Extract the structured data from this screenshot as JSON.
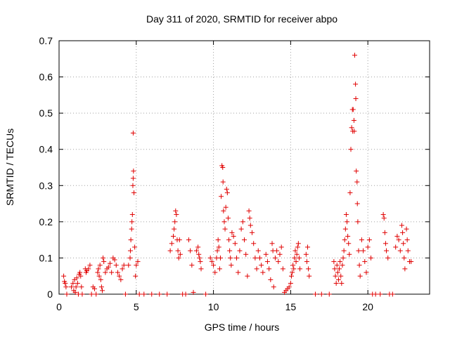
{
  "chart_data": {
    "type": "scatter",
    "title": "Day 311 of 2020, SRMTID for receiver abpo",
    "xlabel": "GPS time / hours",
    "ylabel": "SRMTID / TECUs",
    "xlim": [
      0,
      24
    ],
    "ylim": [
      0,
      0.7
    ],
    "x_ticks": [
      0,
      5,
      10,
      15,
      20
    ],
    "y_ticks": [
      0,
      0.1,
      0.2,
      0.3,
      0.4,
      0.5,
      0.6,
      0.7
    ],
    "x_tick_labels": [
      "0",
      "5",
      "10",
      "15",
      "20"
    ],
    "y_tick_labels": [
      "0",
      "0.1",
      "0.2",
      "0.3",
      "0.4",
      "0.5",
      "0.6",
      "0.7"
    ],
    "grid": true,
    "marker": "+",
    "color": "#e00000",
    "series": [
      {
        "name": "abpo",
        "points": [
          [
            0.3,
            0.05
          ],
          [
            0.35,
            0.035
          ],
          [
            0.4,
            0.03
          ],
          [
            0.45,
            0.02
          ],
          [
            0.5,
            0.0
          ],
          [
            0.8,
            0.02
          ],
          [
            0.9,
            0.03
          ],
          [
            0.95,
            0.01
          ],
          [
            1.0,
            0.04
          ],
          [
            1.05,
            0.005
          ],
          [
            1.1,
            0.02
          ],
          [
            1.15,
            0.045
          ],
          [
            1.2,
            0.03
          ],
          [
            1.25,
            0.0
          ],
          [
            1.3,
            0.055
          ],
          [
            1.35,
            0.06
          ],
          [
            1.4,
            0.05
          ],
          [
            1.45,
            0.02
          ],
          [
            1.5,
            0.0
          ],
          [
            1.7,
            0.07
          ],
          [
            1.75,
            0.06
          ],
          [
            1.8,
            0.065
          ],
          [
            1.9,
            0.07
          ],
          [
            2.0,
            0.08
          ],
          [
            2.1,
            0.0
          ],
          [
            2.2,
            0.02
          ],
          [
            2.3,
            0.015
          ],
          [
            2.4,
            0.0
          ],
          [
            2.5,
            0.06
          ],
          [
            2.55,
            0.07
          ],
          [
            2.6,
            0.05
          ],
          [
            2.65,
            0.08
          ],
          [
            2.7,
            0.04
          ],
          [
            2.75,
            0.02
          ],
          [
            2.8,
            0.01
          ],
          [
            2.85,
            0.1
          ],
          [
            2.9,
            0.09
          ],
          [
            3.0,
            0.06
          ],
          [
            3.1,
            0.07
          ],
          [
            3.2,
            0.075
          ],
          [
            3.3,
            0.085
          ],
          [
            3.4,
            0.06
          ],
          [
            3.5,
            0.1
          ],
          [
            3.6,
            0.095
          ],
          [
            3.7,
            0.08
          ],
          [
            3.8,
            0.06
          ],
          [
            3.9,
            0.05
          ],
          [
            4.0,
            0.04
          ],
          [
            4.1,
            0.07
          ],
          [
            4.2,
            0.08
          ],
          [
            4.3,
            0.0
          ],
          [
            4.5,
            0.08
          ],
          [
            4.6,
            0.1
          ],
          [
            4.62,
            0.12
          ],
          [
            4.65,
            0.15
          ],
          [
            4.7,
            0.18
          ],
          [
            4.72,
            0.2
          ],
          [
            4.75,
            0.22
          ],
          [
            4.78,
            0.3
          ],
          [
            4.8,
            0.32
          ],
          [
            4.82,
            0.34
          ],
          [
            4.8,
            0.445
          ],
          [
            4.85,
            0.28
          ],
          [
            4.9,
            0.13
          ],
          [
            4.95,
            0.05
          ],
          [
            5.0,
            0.08
          ],
          [
            5.1,
            0.09
          ],
          [
            5.2,
            0.0
          ],
          [
            5.5,
            0.0
          ],
          [
            6.0,
            0.0
          ],
          [
            6.5,
            0.0
          ],
          [
            7.0,
            0.0
          ],
          [
            7.2,
            0.12
          ],
          [
            7.3,
            0.14
          ],
          [
            7.4,
            0.16
          ],
          [
            7.45,
            0.18
          ],
          [
            7.5,
            0.2
          ],
          [
            7.55,
            0.23
          ],
          [
            7.6,
            0.22
          ],
          [
            7.65,
            0.15
          ],
          [
            7.7,
            0.12
          ],
          [
            7.75,
            0.1
          ],
          [
            7.8,
            0.15
          ],
          [
            7.85,
            0.11
          ],
          [
            8.0,
            0.0
          ],
          [
            8.2,
            0.0
          ],
          [
            8.4,
            0.15
          ],
          [
            8.5,
            0.12
          ],
          [
            8.6,
            0.08
          ],
          [
            8.7,
            0.005
          ],
          [
            8.9,
            0.12
          ],
          [
            9.0,
            0.13
          ],
          [
            9.05,
            0.11
          ],
          [
            9.1,
            0.1
          ],
          [
            9.15,
            0.09
          ],
          [
            9.2,
            0.07
          ],
          [
            9.5,
            0.0
          ],
          [
            9.8,
            0.1
          ],
          [
            9.9,
            0.09
          ],
          [
            10.0,
            0.08
          ],
          [
            10.1,
            0.06
          ],
          [
            10.2,
            0.1
          ],
          [
            10.25,
            0.12
          ],
          [
            10.3,
            0.15
          ],
          [
            10.35,
            0.13
          ],
          [
            10.4,
            0.07
          ],
          [
            10.45,
            0.1
          ],
          [
            10.5,
            0.27
          ],
          [
            10.55,
            0.355
          ],
          [
            10.6,
            0.35
          ],
          [
            10.62,
            0.31
          ],
          [
            10.65,
            0.23
          ],
          [
            10.7,
            0.2
          ],
          [
            10.75,
            0.18
          ],
          [
            10.8,
            0.24
          ],
          [
            10.85,
            0.29
          ],
          [
            10.9,
            0.28
          ],
          [
            10.95,
            0.21
          ],
          [
            11.0,
            0.15
          ],
          [
            11.05,
            0.12
          ],
          [
            11.1,
            0.1
          ],
          [
            11.15,
            0.08
          ],
          [
            11.2,
            0.17
          ],
          [
            11.3,
            0.16
          ],
          [
            11.4,
            0.14
          ],
          [
            11.5,
            0.1
          ],
          [
            11.6,
            0.06
          ],
          [
            11.7,
            0.12
          ],
          [
            11.8,
            0.18
          ],
          [
            11.9,
            0.2
          ],
          [
            12.0,
            0.15
          ],
          [
            12.1,
            0.11
          ],
          [
            12.2,
            0.05
          ],
          [
            12.3,
            0.23
          ],
          [
            12.35,
            0.21
          ],
          [
            12.4,
            0.19
          ],
          [
            12.5,
            0.17
          ],
          [
            12.6,
            0.14
          ],
          [
            12.7,
            0.1
          ],
          [
            12.8,
            0.07
          ],
          [
            12.9,
            0.12
          ],
          [
            13.0,
            0.1
          ],
          [
            13.1,
            0.08
          ],
          [
            13.2,
            0.06
          ],
          [
            13.4,
            0.11
          ],
          [
            13.5,
            0.09
          ],
          [
            13.6,
            0.07
          ],
          [
            13.7,
            0.04
          ],
          [
            13.8,
            0.14
          ],
          [
            13.85,
            0.12
          ],
          [
            13.9,
            0.02
          ],
          [
            14.0,
            0.1
          ],
          [
            14.1,
            0.12
          ],
          [
            14.2,
            0.09
          ],
          [
            14.3,
            0.11
          ],
          [
            14.4,
            0.13
          ],
          [
            14.5,
            0.07
          ],
          [
            14.6,
            0.005
          ],
          [
            14.7,
            0.01
          ],
          [
            14.8,
            0.015
          ],
          [
            14.9,
            0.02
          ],
          [
            15.0,
            0.03
          ],
          [
            15.05,
            0.05
          ],
          [
            15.1,
            0.06
          ],
          [
            15.15,
            0.08
          ],
          [
            15.2,
            0.07
          ],
          [
            15.25,
            0.1
          ],
          [
            15.3,
            0.12
          ],
          [
            15.35,
            0.09
          ],
          [
            15.4,
            0.11
          ],
          [
            15.45,
            0.13
          ],
          [
            15.5,
            0.14
          ],
          [
            15.55,
            0.1
          ],
          [
            15.6,
            0.07
          ],
          [
            16.0,
            0.11
          ],
          [
            16.05,
            0.09
          ],
          [
            16.1,
            0.13
          ],
          [
            16.15,
            0.07
          ],
          [
            16.2,
            0.05
          ],
          [
            16.6,
            0.0
          ],
          [
            17.0,
            0.0
          ],
          [
            17.5,
            0.0
          ],
          [
            17.8,
            0.09
          ],
          [
            17.85,
            0.07
          ],
          [
            17.9,
            0.05
          ],
          [
            17.95,
            0.03
          ],
          [
            18.0,
            0.08
          ],
          [
            18.05,
            0.06
          ],
          [
            18.1,
            0.04
          ],
          [
            18.15,
            0.07
          ],
          [
            18.2,
            0.09
          ],
          [
            18.25,
            0.05
          ],
          [
            18.3,
            0.03
          ],
          [
            18.35,
            0.08
          ],
          [
            18.4,
            0.1
          ],
          [
            18.45,
            0.12
          ],
          [
            18.5,
            0.15
          ],
          [
            18.55,
            0.18
          ],
          [
            18.6,
            0.22
          ],
          [
            18.65,
            0.2
          ],
          [
            18.7,
            0.16
          ],
          [
            18.75,
            0.14
          ],
          [
            18.8,
            0.11
          ],
          [
            18.85,
            0.28
          ],
          [
            18.9,
            0.4
          ],
          [
            18.95,
            0.46
          ],
          [
            19.0,
            0.51
          ],
          [
            19.02,
            0.45
          ],
          [
            19.05,
            0.51
          ],
          [
            19.1,
            0.48
          ],
          [
            19.12,
            0.45
          ],
          [
            19.15,
            0.66
          ],
          [
            19.2,
            0.58
          ],
          [
            19.22,
            0.54
          ],
          [
            19.25,
            0.34
          ],
          [
            19.3,
            0.31
          ],
          [
            19.32,
            0.25
          ],
          [
            19.35,
            0.2
          ],
          [
            19.4,
            0.12
          ],
          [
            19.45,
            0.08
          ],
          [
            19.5,
            0.05
          ],
          [
            19.6,
            0.15
          ],
          [
            19.7,
            0.12
          ],
          [
            19.8,
            0.09
          ],
          [
            19.9,
            0.06
          ],
          [
            20.0,
            0.13
          ],
          [
            20.1,
            0.15
          ],
          [
            20.2,
            0.1
          ],
          [
            20.3,
            0.0
          ],
          [
            20.5,
            0.0
          ],
          [
            20.8,
            0.0
          ],
          [
            21.0,
            0.22
          ],
          [
            21.05,
            0.21
          ],
          [
            21.1,
            0.17
          ],
          [
            21.15,
            0.14
          ],
          [
            21.2,
            0.12
          ],
          [
            21.3,
            0.1
          ],
          [
            21.4,
            0.0
          ],
          [
            21.6,
            0.0
          ],
          [
            21.8,
            0.13
          ],
          [
            21.9,
            0.16
          ],
          [
            22.0,
            0.15
          ],
          [
            22.1,
            0.12
          ],
          [
            22.2,
            0.19
          ],
          [
            22.25,
            0.17
          ],
          [
            22.3,
            0.14
          ],
          [
            22.35,
            0.1
          ],
          [
            22.4,
            0.07
          ],
          [
            22.5,
            0.18
          ],
          [
            22.55,
            0.15
          ],
          [
            22.6,
            0.12
          ],
          [
            22.7,
            0.09
          ],
          [
            22.8,
            0.09
          ]
        ]
      }
    ]
  }
}
